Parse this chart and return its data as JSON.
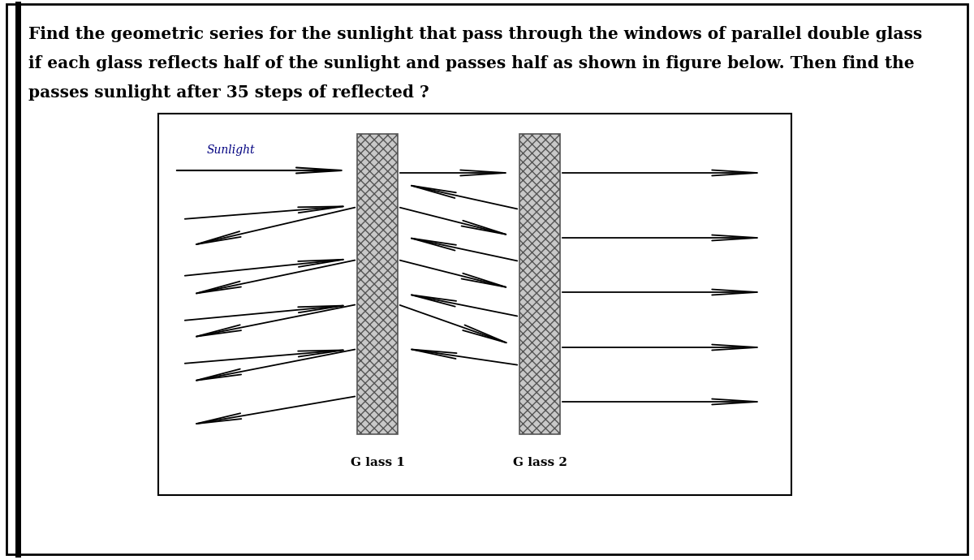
{
  "title_text": "Find the geometric series for the sunlight that pass through the windows of parallel double glass\nif each glass reflects half of the sunlight and passes half as shown in figure below. Then find the\npasses sunlight after 35 steps of reflected ?",
  "title_fontsize": 14,
  "bg_color": "#ffffff",
  "border_color": "#000000",
  "fig_width": 12.0,
  "fig_height": 6.9,
  "glass1_label": "G lass 1",
  "glass2_label": "G lass 2",
  "sunlight_label": "Sunlight",
  "arrow_color": "#000000",
  "sunlight_label_color": "#000080"
}
